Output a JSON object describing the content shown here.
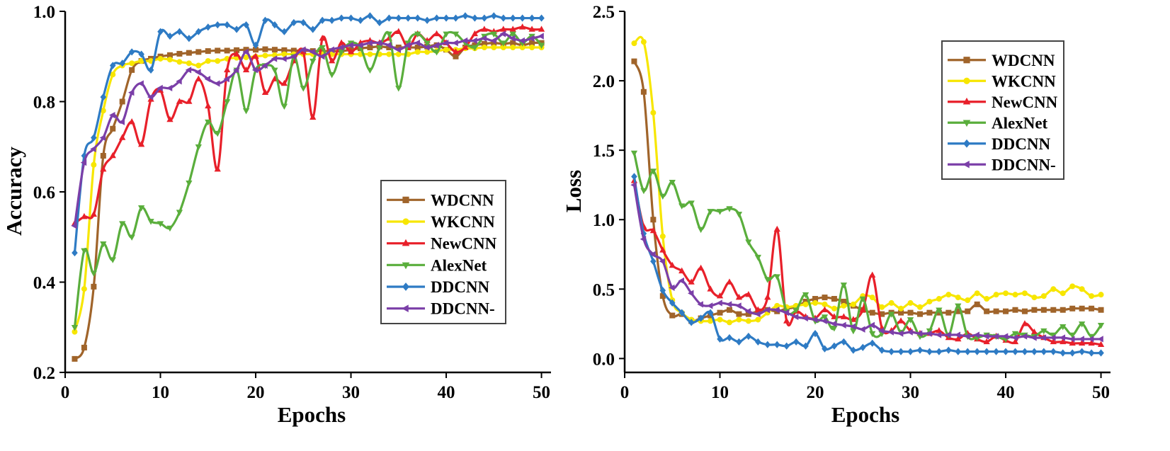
{
  "colors": {
    "WDCNN": "#A0642A",
    "WKCNN": "#F7E600",
    "NewCNN": "#E8202A",
    "AlexNet": "#5AAE3C",
    "DDCNN": "#2E7BC4",
    "DDCNN-": "#7B3FA8"
  },
  "chart_data": [
    {
      "type": "line",
      "title": "",
      "xlabel": "Epochs",
      "ylabel": "Accuracy",
      "xlim": [
        0,
        51
      ],
      "ylim": [
        0.2,
        1.0
      ],
      "xticks": [
        "0",
        "10",
        "20",
        "30",
        "40",
        "50"
      ],
      "yticks": [
        "0.2",
        "0.4",
        "0.6",
        "0.8",
        "1.0"
      ],
      "legend_position": "lower-right",
      "x": [
        1,
        2,
        3,
        4,
        5,
        6,
        7,
        8,
        9,
        10,
        11,
        12,
        13,
        14,
        15,
        16,
        17,
        18,
        19,
        20,
        21,
        22,
        23,
        24,
        25,
        26,
        27,
        28,
        29,
        30,
        31,
        32,
        33,
        34,
        35,
        36,
        37,
        38,
        39,
        40,
        41,
        42,
        43,
        44,
        45,
        46,
        47,
        48,
        49,
        50
      ],
      "series": [
        {
          "name": "WDCNN",
          "marker": "square",
          "values": [
            0.23,
            0.255,
            0.39,
            0.68,
            0.74,
            0.8,
            0.87,
            0.89,
            0.895,
            0.9,
            0.903,
            0.906,
            0.908,
            0.91,
            0.912,
            0.913,
            0.913,
            0.914,
            0.915,
            0.915,
            0.916,
            0.915,
            0.914,
            0.913,
            0.913,
            0.912,
            0.912,
            0.912,
            0.912,
            0.915,
            0.918,
            0.92,
            0.922,
            0.92,
            0.92,
            0.92,
            0.92,
            0.922,
            0.925,
            0.915,
            0.9,
            0.92,
            0.925,
            0.928,
            0.93,
            0.928,
            0.93,
            0.925,
            0.93,
            0.93
          ]
        },
        {
          "name": "WKCNN",
          "marker": "circle",
          "values": [
            0.29,
            0.385,
            0.66,
            0.78,
            0.86,
            0.88,
            0.885,
            0.89,
            0.89,
            0.895,
            0.893,
            0.888,
            0.885,
            0.88,
            0.89,
            0.89,
            0.895,
            0.897,
            0.898,
            0.9,
            0.902,
            0.903,
            0.905,
            0.905,
            0.905,
            0.905,
            0.905,
            0.905,
            0.905,
            0.905,
            0.905,
            0.905,
            0.905,
            0.905,
            0.905,
            0.905,
            0.91,
            0.91,
            0.912,
            0.915,
            0.915,
            0.918,
            0.918,
            0.92,
            0.92,
            0.92,
            0.92,
            0.92,
            0.92,
            0.92
          ]
        },
        {
          "name": "NewCNN",
          "marker": "triangle-up",
          "values": [
            0.53,
            0.545,
            0.55,
            0.65,
            0.68,
            0.72,
            0.755,
            0.705,
            0.805,
            0.825,
            0.76,
            0.8,
            0.8,
            0.85,
            0.79,
            0.65,
            0.87,
            0.905,
            0.87,
            0.9,
            0.82,
            0.85,
            0.84,
            0.89,
            0.91,
            0.765,
            0.94,
            0.89,
            0.93,
            0.91,
            0.93,
            0.935,
            0.93,
            0.94,
            0.955,
            0.92,
            0.95,
            0.935,
            0.95,
            0.93,
            0.91,
            0.92,
            0.95,
            0.96,
            0.955,
            0.96,
            0.96,
            0.965,
            0.96,
            0.96
          ]
        },
        {
          "name": "AlexNet",
          "marker": "triangle-down",
          "values": [
            0.3,
            0.47,
            0.42,
            0.485,
            0.45,
            0.53,
            0.5,
            0.565,
            0.535,
            0.53,
            0.52,
            0.555,
            0.62,
            0.7,
            0.755,
            0.73,
            0.8,
            0.87,
            0.78,
            0.87,
            0.88,
            0.87,
            0.79,
            0.9,
            0.83,
            0.89,
            0.92,
            0.86,
            0.91,
            0.93,
            0.92,
            0.87,
            0.92,
            0.95,
            0.83,
            0.93,
            0.95,
            0.93,
            0.91,
            0.95,
            0.95,
            0.93,
            0.92,
            0.945,
            0.95,
            0.93,
            0.95,
            0.93,
            0.945,
            0.925
          ]
        },
        {
          "name": "DDCNN",
          "marker": "diamond",
          "values": [
            0.465,
            0.68,
            0.72,
            0.81,
            0.88,
            0.885,
            0.91,
            0.905,
            0.87,
            0.955,
            0.945,
            0.955,
            0.94,
            0.955,
            0.965,
            0.97,
            0.97,
            0.96,
            0.97,
            0.925,
            0.98,
            0.97,
            0.955,
            0.975,
            0.975,
            0.96,
            0.98,
            0.98,
            0.985,
            0.985,
            0.98,
            0.99,
            0.975,
            0.985,
            0.985,
            0.985,
            0.985,
            0.98,
            0.985,
            0.985,
            0.985,
            0.99,
            0.985,
            0.985,
            0.99,
            0.985,
            0.985,
            0.985,
            0.985,
            0.985
          ]
        },
        {
          "name": "DDCNN-",
          "marker": "triangle-left",
          "values": [
            0.525,
            0.665,
            0.695,
            0.72,
            0.77,
            0.755,
            0.82,
            0.84,
            0.81,
            0.83,
            0.83,
            0.845,
            0.87,
            0.865,
            0.85,
            0.84,
            0.85,
            0.87,
            0.91,
            0.87,
            0.88,
            0.895,
            0.895,
            0.9,
            0.915,
            0.91,
            0.9,
            0.915,
            0.92,
            0.925,
            0.925,
            0.93,
            0.93,
            0.925,
            0.915,
            0.925,
            0.93,
            0.92,
            0.925,
            0.93,
            0.93,
            0.935,
            0.935,
            0.94,
            0.935,
            0.95,
            0.94,
            0.935,
            0.94,
            0.945
          ]
        }
      ]
    },
    {
      "type": "line",
      "title": "",
      "xlabel": "Epochs",
      "ylabel": "Loss",
      "xlim": [
        0,
        51
      ],
      "ylim": [
        -0.1,
        2.5
      ],
      "xticks": [
        "0",
        "10",
        "20",
        "30",
        "40",
        "50"
      ],
      "yticks": [
        "0.0",
        "0.5",
        "1.0",
        "1.5",
        "2.0",
        "2.5"
      ],
      "legend_position": "upper-right",
      "x": [
        1,
        2,
        3,
        4,
        5,
        6,
        7,
        8,
        9,
        10,
        11,
        12,
        13,
        14,
        15,
        16,
        17,
        18,
        19,
        20,
        21,
        22,
        23,
        24,
        25,
        26,
        27,
        28,
        29,
        30,
        31,
        32,
        33,
        34,
        35,
        36,
        37,
        38,
        39,
        40,
        41,
        42,
        43,
        44,
        45,
        46,
        47,
        48,
        49,
        50
      ],
      "series": [
        {
          "name": "WDCNN",
          "marker": "square",
          "values": [
            2.14,
            1.92,
            1.0,
            0.45,
            0.31,
            0.32,
            0.27,
            0.29,
            0.31,
            0.33,
            0.35,
            0.32,
            0.32,
            0.34,
            0.35,
            0.34,
            0.36,
            0.37,
            0.41,
            0.43,
            0.44,
            0.43,
            0.41,
            0.38,
            0.35,
            0.33,
            0.32,
            0.33,
            0.33,
            0.33,
            0.32,
            0.33,
            0.33,
            0.33,
            0.34,
            0.34,
            0.39,
            0.34,
            0.34,
            0.34,
            0.35,
            0.34,
            0.35,
            0.35,
            0.35,
            0.35,
            0.36,
            0.36,
            0.36,
            0.35
          ]
        },
        {
          "name": "WKCNN",
          "marker": "circle",
          "values": [
            2.27,
            2.28,
            1.77,
            0.88,
            0.42,
            0.33,
            0.28,
            0.27,
            0.27,
            0.28,
            0.26,
            0.28,
            0.27,
            0.28,
            0.33,
            0.38,
            0.37,
            0.38,
            0.39,
            0.4,
            0.39,
            0.36,
            0.38,
            0.39,
            0.45,
            0.44,
            0.37,
            0.4,
            0.36,
            0.4,
            0.37,
            0.41,
            0.43,
            0.46,
            0.44,
            0.42,
            0.47,
            0.43,
            0.46,
            0.47,
            0.46,
            0.47,
            0.44,
            0.45,
            0.5,
            0.47,
            0.52,
            0.5,
            0.45,
            0.46
          ]
        },
        {
          "name": "NewCNN",
          "marker": "triangle-up",
          "values": [
            1.28,
            0.95,
            0.92,
            0.78,
            0.67,
            0.63,
            0.55,
            0.65,
            0.5,
            0.45,
            0.55,
            0.44,
            0.46,
            0.35,
            0.44,
            0.93,
            0.27,
            0.34,
            0.3,
            0.29,
            0.35,
            0.3,
            0.3,
            0.28,
            0.35,
            0.6,
            0.22,
            0.2,
            0.27,
            0.2,
            0.18,
            0.18,
            0.2,
            0.15,
            0.14,
            0.18,
            0.14,
            0.12,
            0.16,
            0.13,
            0.12,
            0.25,
            0.19,
            0.15,
            0.12,
            0.12,
            0.11,
            0.11,
            0.11,
            0.1
          ]
        },
        {
          "name": "AlexNet",
          "marker": "triangle-down",
          "values": [
            1.48,
            1.21,
            1.35,
            1.17,
            1.27,
            1.1,
            1.12,
            0.93,
            1.06,
            1.06,
            1.08,
            1.04,
            0.84,
            0.73,
            0.57,
            0.59,
            0.34,
            0.35,
            0.46,
            0.27,
            0.3,
            0.22,
            0.53,
            0.2,
            0.43,
            0.18,
            0.18,
            0.32,
            0.19,
            0.28,
            0.16,
            0.2,
            0.35,
            0.17,
            0.38,
            0.16,
            0.15,
            0.17,
            0.16,
            0.14,
            0.18,
            0.17,
            0.16,
            0.2,
            0.17,
            0.23,
            0.17,
            0.25,
            0.16,
            0.24
          ]
        },
        {
          "name": "DDCNN",
          "marker": "diamond",
          "values": [
            1.31,
            0.9,
            0.7,
            0.49,
            0.4,
            0.33,
            0.26,
            0.29,
            0.33,
            0.14,
            0.15,
            0.12,
            0.16,
            0.12,
            0.1,
            0.1,
            0.09,
            0.12,
            0.09,
            0.18,
            0.07,
            0.09,
            0.12,
            0.06,
            0.08,
            0.11,
            0.06,
            0.05,
            0.05,
            0.05,
            0.06,
            0.05,
            0.05,
            0.06,
            0.05,
            0.05,
            0.05,
            0.05,
            0.05,
            0.05,
            0.05,
            0.05,
            0.05,
            0.05,
            0.05,
            0.04,
            0.04,
            0.05,
            0.04,
            0.04
          ]
        },
        {
          "name": "DDCNN-",
          "marker": "triangle-left",
          "values": [
            1.25,
            0.86,
            0.75,
            0.7,
            0.51,
            0.56,
            0.47,
            0.39,
            0.38,
            0.4,
            0.39,
            0.38,
            0.34,
            0.32,
            0.35,
            0.35,
            0.33,
            0.3,
            0.29,
            0.28,
            0.27,
            0.25,
            0.24,
            0.23,
            0.21,
            0.24,
            0.2,
            0.19,
            0.18,
            0.19,
            0.18,
            0.18,
            0.17,
            0.17,
            0.17,
            0.16,
            0.17,
            0.16,
            0.16,
            0.16,
            0.15,
            0.16,
            0.15,
            0.15,
            0.15,
            0.15,
            0.14,
            0.14,
            0.14,
            0.14
          ]
        }
      ]
    }
  ]
}
